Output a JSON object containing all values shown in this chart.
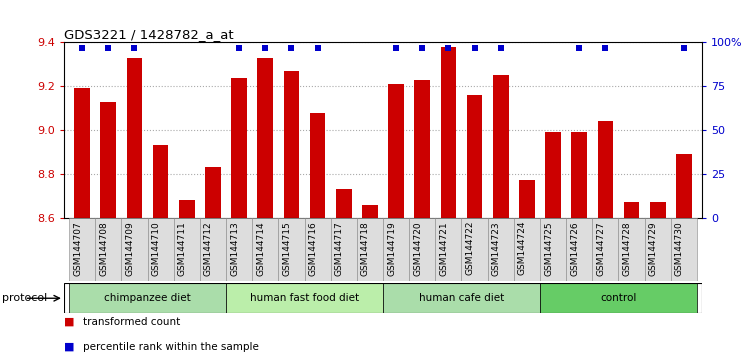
{
  "title": "GDS3221 / 1428782_a_at",
  "samples": [
    "GSM144707",
    "GSM144708",
    "GSM144709",
    "GSM144710",
    "GSM144711",
    "GSM144712",
    "GSM144713",
    "GSM144714",
    "GSM144715",
    "GSM144716",
    "GSM144717",
    "GSM144718",
    "GSM144719",
    "GSM144720",
    "GSM144721",
    "GSM144722",
    "GSM144723",
    "GSM144724",
    "GSM144725",
    "GSM144726",
    "GSM144727",
    "GSM144728",
    "GSM144729",
    "GSM144730"
  ],
  "bar_values": [
    9.19,
    9.13,
    9.33,
    8.93,
    8.68,
    8.83,
    9.24,
    9.33,
    9.27,
    9.08,
    8.73,
    8.66,
    9.21,
    9.23,
    9.38,
    9.16,
    9.25,
    8.77,
    8.99,
    8.99,
    9.04,
    8.67,
    8.67,
    8.89
  ],
  "percentile_high": [
    true,
    true,
    true,
    false,
    false,
    false,
    true,
    true,
    true,
    true,
    false,
    false,
    true,
    true,
    true,
    true,
    true,
    false,
    false,
    true,
    true,
    false,
    false,
    true
  ],
  "bar_color": "#cc0000",
  "percentile_color": "#0000cc",
  "ylim_left": [
    8.6,
    9.4
  ],
  "yticks_left": [
    8.6,
    8.8,
    9.0,
    9.2,
    9.4
  ],
  "yticks_right_labels": [
    "0",
    "25",
    "50",
    "75",
    "100%"
  ],
  "yticks_right_vals": [
    8.6,
    8.8,
    9.0,
    9.2,
    9.4
  ],
  "groups": [
    {
      "label": "chimpanzee diet",
      "start": 0,
      "end": 5,
      "color": "#aaddaa"
    },
    {
      "label": "human fast food diet",
      "start": 6,
      "end": 11,
      "color": "#bbeeaa"
    },
    {
      "label": "human cafe diet",
      "start": 12,
      "end": 17,
      "color": "#aaddaa"
    },
    {
      "label": "control",
      "start": 18,
      "end": 23,
      "color": "#66cc66"
    }
  ],
  "protocol_label": "protocol",
  "legend_bar_label": "transformed count",
  "legend_percentile_label": "percentile rank within the sample",
  "background_color": "#ffffff",
  "plot_bg_color": "#ffffff",
  "grid_color": "#aaaaaa",
  "tick_label_color_left": "#cc0000",
  "tick_label_color_right": "#0000cc",
  "xticklabel_bg": "#dddddd"
}
